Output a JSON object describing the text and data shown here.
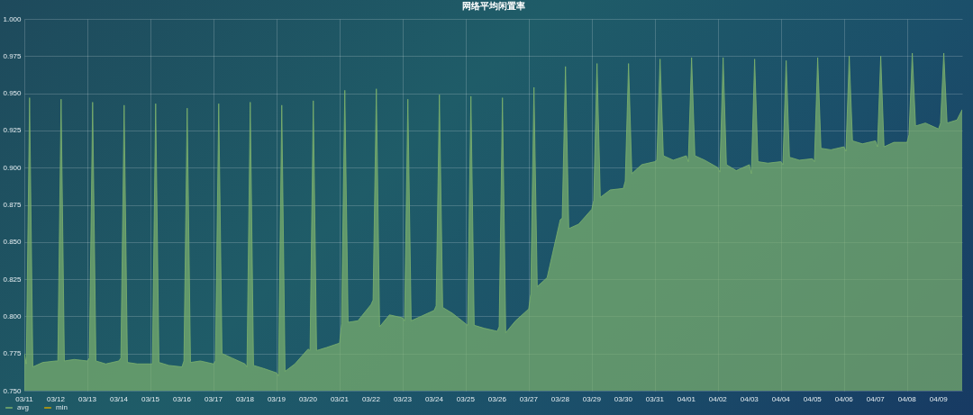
{
  "chart_data": {
    "type": "area",
    "title": "网络平均闲置率",
    "x": [
      "--03-11T00:00",
      "--03-11T01:30",
      "--03-11T04:00",
      "--03-11T06:30",
      "--03-11T14:00",
      "--03-12T00:00",
      "--03-12T01:30",
      "--03-12T04:00",
      "--03-12T06:30",
      "--03-12T14:00",
      "--03-13T00:00",
      "--03-13T01:30",
      "--03-13T04:00",
      "--03-13T06:30",
      "--03-13T14:00",
      "--03-14T00:00",
      "--03-14T01:30",
      "--03-14T04:00",
      "--03-14T06:30",
      "--03-14T14:00",
      "--03-15T00:00",
      "--03-15T01:30",
      "--03-15T04:00",
      "--03-15T06:30",
      "--03-15T14:00",
      "--03-16T00:00",
      "--03-16T01:30",
      "--03-16T04:00",
      "--03-16T06:30",
      "--03-16T14:00",
      "--03-17T00:00",
      "--03-17T01:30",
      "--03-17T04:00",
      "--03-17T06:30",
      "--03-17T14:00",
      "--03-18T00:00",
      "--03-18T01:30",
      "--03-18T04:00",
      "--03-18T06:30",
      "--03-18T14:00",
      "--03-19T00:00",
      "--03-19T01:30",
      "--03-19T04:00",
      "--03-19T06:30",
      "--03-19T14:00",
      "--03-20T00:00",
      "--03-20T01:30",
      "--03-20T04:00",
      "--03-20T06:30",
      "--03-20T14:00",
      "--03-21T00:00",
      "--03-21T01:30",
      "--03-21T04:00",
      "--03-21T06:30",
      "--03-21T14:00",
      "--03-22T00:00",
      "--03-22T01:30",
      "--03-22T04:00",
      "--03-22T06:30",
      "--03-22T14:00",
      "--03-23T00:00",
      "--03-23T01:30",
      "--03-23T04:00",
      "--03-23T06:30",
      "--03-23T14:00",
      "--03-24T00:00",
      "--03-24T01:30",
      "--03-24T04:00",
      "--03-24T06:30",
      "--03-24T14:00",
      "--03-25T00:00",
      "--03-25T01:30",
      "--03-25T04:00",
      "--03-25T06:30",
      "--03-25T14:00",
      "--03-26T00:00",
      "--03-26T01:30",
      "--03-26T04:00",
      "--03-26T06:30",
      "--03-26T14:00",
      "--03-27T00:00",
      "--03-27T01:30",
      "--03-27T04:00",
      "--03-27T06:30",
      "--03-27T14:00",
      "--03-28T00:00",
      "--03-28T01:30",
      "--03-28T04:00",
      "--03-28T06:30",
      "--03-28T14:00",
      "--03-29T00:00",
      "--03-29T01:30",
      "--03-29T04:00",
      "--03-29T06:30",
      "--03-29T14:00",
      "--03-30T00:00",
      "--03-30T01:30",
      "--03-30T04:00",
      "--03-30T06:30",
      "--03-30T14:00",
      "--03-31T00:00",
      "--03-31T01:30",
      "--03-31T04:00",
      "--03-31T06:30",
      "--03-31T14:00",
      "--04-01T00:00",
      "--04-01T01:30",
      "--04-01T04:00",
      "--04-01T06:30",
      "--04-01T14:00",
      "--04-02T00:00",
      "--04-02T01:30",
      "--04-02T04:00",
      "--04-02T06:30",
      "--04-02T14:00",
      "--04-03T00:00",
      "--04-03T01:30",
      "--04-03T04:00",
      "--04-03T06:30",
      "--04-03T14:00",
      "--04-04T00:00",
      "--04-04T01:30",
      "--04-04T04:00",
      "--04-04T06:30",
      "--04-04T14:00",
      "--04-05T00:00",
      "--04-05T01:30",
      "--04-05T04:00",
      "--04-05T06:30",
      "--04-05T14:00",
      "--04-06T00:00",
      "--04-06T01:30",
      "--04-06T04:00",
      "--04-06T06:30",
      "--04-06T14:00",
      "--04-07T00:00",
      "--04-07T01:30",
      "--04-07T04:00",
      "--04-07T06:30",
      "--04-07T14:00",
      "--04-08T00:00",
      "--04-08T01:30",
      "--04-08T04:00",
      "--04-08T06:30",
      "--04-08T14:00",
      "--04-09T00:00",
      "--04-09T01:30",
      "--04-09T04:00",
      "--04-09T06:30",
      "--04-09T14:00",
      "--04-09T18:00"
    ],
    "series": [
      {
        "name": "avg",
        "color": "#7eb26d",
        "values": [
          0.775,
          0.768,
          0.947,
          0.766,
          0.769,
          0.77,
          0.77,
          0.946,
          0.77,
          0.771,
          0.77,
          0.772,
          0.944,
          0.77,
          0.768,
          0.77,
          0.772,
          0.942,
          0.769,
          0.768,
          0.768,
          0.768,
          0.943,
          0.769,
          0.767,
          0.766,
          0.77,
          0.94,
          0.769,
          0.77,
          0.768,
          0.77,
          0.943,
          0.775,
          0.772,
          0.768,
          0.766,
          0.944,
          0.767,
          0.765,
          0.762,
          0.76,
          0.942,
          0.763,
          0.768,
          0.778,
          0.777,
          0.945,
          0.777,
          0.779,
          0.782,
          0.795,
          0.952,
          0.796,
          0.797,
          0.808,
          0.811,
          0.953,
          0.793,
          0.801,
          0.799,
          0.797,
          0.946,
          0.797,
          0.8,
          0.804,
          0.807,
          0.949,
          0.806,
          0.802,
          0.795,
          0.794,
          0.948,
          0.794,
          0.792,
          0.79,
          0.793,
          0.947,
          0.789,
          0.797,
          0.805,
          0.815,
          0.954,
          0.82,
          0.826,
          0.865,
          0.866,
          0.968,
          0.859,
          0.862,
          0.872,
          0.878,
          0.97,
          0.88,
          0.885,
          0.886,
          0.891,
          0.97,
          0.896,
          0.902,
          0.904,
          0.905,
          0.973,
          0.908,
          0.905,
          0.908,
          0.904,
          0.974,
          0.908,
          0.905,
          0.9,
          0.897,
          0.974,
          0.902,
          0.898,
          0.902,
          0.896,
          0.973,
          0.904,
          0.903,
          0.904,
          0.902,
          0.972,
          0.907,
          0.905,
          0.906,
          0.904,
          0.974,
          0.913,
          0.912,
          0.914,
          0.911,
          0.975,
          0.918,
          0.916,
          0.918,
          0.914,
          0.975,
          0.914,
          0.917,
          0.917,
          0.922,
          0.977,
          0.928,
          0.93,
          0.926,
          0.93,
          0.977,
          0.93,
          0.932,
          0.939
        ]
      },
      {
        "name": "min",
        "color": "#cca300",
        "values": [
          null,
          null,
          null,
          null,
          null,
          null,
          null,
          null,
          null,
          null,
          null,
          null,
          null,
          null,
          null,
          null,
          null,
          null,
          null,
          null,
          null,
          null,
          null,
          null,
          null,
          null,
          null,
          null,
          null,
          null,
          null,
          null,
          null,
          null,
          null,
          null,
          null,
          null,
          null,
          null,
          null,
          null,
          null,
          null,
          null,
          null,
          null,
          null,
          null,
          null,
          null,
          null,
          null,
          null,
          null,
          null,
          null,
          null,
          null,
          null,
          null,
          null,
          null,
          null,
          null,
          null,
          null,
          null,
          null,
          null,
          null,
          null,
          null,
          null,
          null,
          null,
          null,
          null,
          null,
          null,
          null,
          null,
          null,
          null,
          null,
          null,
          null,
          null,
          null,
          null,
          null,
          null,
          null,
          null,
          null,
          null,
          null,
          null,
          null,
          null,
          null,
          null,
          null,
          null,
          null,
          null,
          null,
          null,
          null,
          null,
          null,
          null,
          null,
          null,
          null,
          null,
          null,
          null,
          null,
          null,
          null,
          null,
          null,
          null,
          null,
          null,
          null,
          null,
          null,
          null,
          null,
          null,
          null,
          null,
          null,
          null,
          null,
          null,
          null,
          null,
          null,
          null,
          null,
          null,
          null,
          null,
          null,
          null,
          null,
          null,
          null
        ]
      }
    ],
    "xlim": [
      "--03-11T00:00",
      "--04-09T18:00"
    ],
    "xticks": [
      {
        "value": "--03-11",
        "label": "03/11"
      },
      {
        "value": "--03-12",
        "label": "03/12"
      },
      {
        "value": "--03-13",
        "label": "03/13"
      },
      {
        "value": "--03-14",
        "label": "03/14"
      },
      {
        "value": "--03-15",
        "label": "03/15"
      },
      {
        "value": "--03-16",
        "label": "03/16"
      },
      {
        "value": "--03-17",
        "label": "03/17"
      },
      {
        "value": "--03-18",
        "label": "03/18"
      },
      {
        "value": "--03-19",
        "label": "03/19"
      },
      {
        "value": "--03-20",
        "label": "03/20"
      },
      {
        "value": "--03-21",
        "label": "03/21"
      },
      {
        "value": "--03-22",
        "label": "03/22"
      },
      {
        "value": "--03-23",
        "label": "03/23"
      },
      {
        "value": "--03-24",
        "label": "03/24"
      },
      {
        "value": "--03-25",
        "label": "03/25"
      },
      {
        "value": "--03-26",
        "label": "03/26"
      },
      {
        "value": "--03-27",
        "label": "03/27"
      },
      {
        "value": "--03-28",
        "label": "03/28"
      },
      {
        "value": "--03-29",
        "label": "03/29"
      },
      {
        "value": "--03-30",
        "label": "03/30"
      },
      {
        "value": "--03-31",
        "label": "03/31"
      },
      {
        "value": "--04-01",
        "label": "04/01"
      },
      {
        "value": "--04-02",
        "label": "04/02"
      },
      {
        "value": "--04-03",
        "label": "04/03"
      },
      {
        "value": "--04-04",
        "label": "04/04"
      },
      {
        "value": "--04-05",
        "label": "04/05"
      },
      {
        "value": "--04-06",
        "label": "04/06"
      },
      {
        "value": "--04-07",
        "label": "04/07"
      },
      {
        "value": "--04-08",
        "label": "04/08"
      },
      {
        "value": "--04-09",
        "label": "04/09"
      }
    ],
    "ylim": [
      0.75,
      1.0
    ],
    "yticks": [
      {
        "value": 0.75,
        "label": "0.750"
      },
      0.775,
      {
        "value": 0.8,
        "label": "0.800"
      },
      0.825,
      {
        "value": 0.85,
        "label": "0.850"
      },
      0.875,
      {
        "value": 0.9,
        "label": "0.900"
      },
      0.925,
      {
        "value": 0.95,
        "label": "0.950"
      },
      0.975,
      {
        "value": 1.0,
        "label": "1.000"
      }
    ],
    "grid": true,
    "legend": "bottom left",
    "line_style": "solid"
  }
}
